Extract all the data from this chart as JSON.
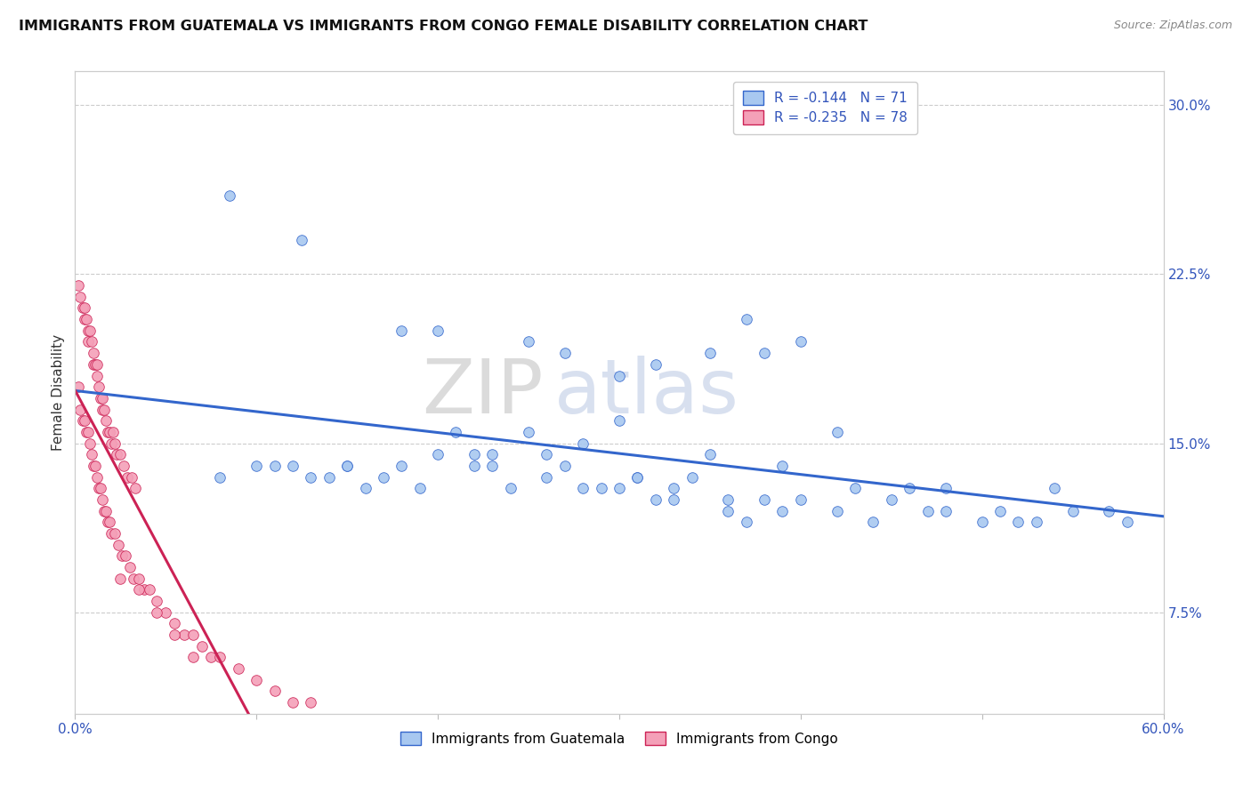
{
  "title": "IMMIGRANTS FROM GUATEMALA VS IMMIGRANTS FROM CONGO FEMALE DISABILITY CORRELATION CHART",
  "source": "Source: ZipAtlas.com",
  "ylabel": "Female Disability",
  "xlim": [
    0.0,
    0.6
  ],
  "ylim": [
    0.03,
    0.315
  ],
  "xticks": [
    0.0,
    0.1,
    0.2,
    0.3,
    0.4,
    0.5,
    0.6
  ],
  "color_guatemala": "#a8c8f0",
  "color_congo": "#f4a0b8",
  "color_line_guatemala": "#3366cc",
  "color_line_congo": "#cc2255",
  "watermark_zip": "ZIP",
  "watermark_atlas": "atlas",
  "legend_r1": "R = -0.144",
  "legend_n1": "N = 71",
  "legend_r2": "R = -0.235",
  "legend_n2": "N = 78",
  "guatemala_x": [
    0.085,
    0.125,
    0.18,
    0.2,
    0.25,
    0.27,
    0.3,
    0.32,
    0.35,
    0.37,
    0.4,
    0.3,
    0.25,
    0.28,
    0.38,
    0.42,
    0.35,
    0.22,
    0.18,
    0.15,
    0.12,
    0.1,
    0.08,
    0.14,
    0.16,
    0.2,
    0.24,
    0.26,
    0.29,
    0.31,
    0.33,
    0.36,
    0.39,
    0.43,
    0.46,
    0.48,
    0.51,
    0.54,
    0.57,
    0.11,
    0.13,
    0.17,
    0.19,
    0.23,
    0.28,
    0.32,
    0.36,
    0.4,
    0.44,
    0.5,
    0.21,
    0.26,
    0.34,
    0.38,
    0.42,
    0.47,
    0.53,
    0.58,
    0.15,
    0.23,
    0.31,
    0.45,
    0.55,
    0.27,
    0.33,
    0.39,
    0.48,
    0.22,
    0.3,
    0.37,
    0.52
  ],
  "guatemala_y": [
    0.26,
    0.24,
    0.2,
    0.2,
    0.195,
    0.19,
    0.18,
    0.185,
    0.19,
    0.205,
    0.195,
    0.16,
    0.155,
    0.15,
    0.19,
    0.155,
    0.145,
    0.145,
    0.14,
    0.14,
    0.14,
    0.14,
    0.135,
    0.135,
    0.13,
    0.145,
    0.13,
    0.135,
    0.13,
    0.135,
    0.13,
    0.125,
    0.14,
    0.13,
    0.13,
    0.13,
    0.12,
    0.13,
    0.12,
    0.14,
    0.135,
    0.135,
    0.13,
    0.14,
    0.13,
    0.125,
    0.12,
    0.125,
    0.115,
    0.115,
    0.155,
    0.145,
    0.135,
    0.125,
    0.12,
    0.12,
    0.115,
    0.115,
    0.14,
    0.145,
    0.135,
    0.125,
    0.12,
    0.14,
    0.125,
    0.12,
    0.12,
    0.14,
    0.13,
    0.115,
    0.115
  ],
  "congo_x": [
    0.002,
    0.003,
    0.004,
    0.005,
    0.005,
    0.006,
    0.007,
    0.007,
    0.008,
    0.009,
    0.01,
    0.01,
    0.011,
    0.012,
    0.012,
    0.013,
    0.014,
    0.015,
    0.015,
    0.016,
    0.017,
    0.018,
    0.019,
    0.02,
    0.021,
    0.022,
    0.023,
    0.025,
    0.027,
    0.029,
    0.031,
    0.033,
    0.002,
    0.003,
    0.004,
    0.005,
    0.006,
    0.007,
    0.008,
    0.009,
    0.01,
    0.011,
    0.012,
    0.013,
    0.014,
    0.015,
    0.016,
    0.017,
    0.018,
    0.019,
    0.02,
    0.022,
    0.024,
    0.026,
    0.028,
    0.03,
    0.032,
    0.035,
    0.038,
    0.041,
    0.045,
    0.05,
    0.055,
    0.06,
    0.065,
    0.07,
    0.075,
    0.08,
    0.09,
    0.1,
    0.11,
    0.12,
    0.13,
    0.025,
    0.035,
    0.045,
    0.055,
    0.065
  ],
  "congo_y": [
    0.22,
    0.215,
    0.21,
    0.205,
    0.21,
    0.205,
    0.2,
    0.195,
    0.2,
    0.195,
    0.185,
    0.19,
    0.185,
    0.18,
    0.185,
    0.175,
    0.17,
    0.165,
    0.17,
    0.165,
    0.16,
    0.155,
    0.155,
    0.15,
    0.155,
    0.15,
    0.145,
    0.145,
    0.14,
    0.135,
    0.135,
    0.13,
    0.175,
    0.165,
    0.16,
    0.16,
    0.155,
    0.155,
    0.15,
    0.145,
    0.14,
    0.14,
    0.135,
    0.13,
    0.13,
    0.125,
    0.12,
    0.12,
    0.115,
    0.115,
    0.11,
    0.11,
    0.105,
    0.1,
    0.1,
    0.095,
    0.09,
    0.09,
    0.085,
    0.085,
    0.08,
    0.075,
    0.07,
    0.065,
    0.065,
    0.06,
    0.055,
    0.055,
    0.05,
    0.045,
    0.04,
    0.035,
    0.035,
    0.09,
    0.085,
    0.075,
    0.065,
    0.055
  ]
}
